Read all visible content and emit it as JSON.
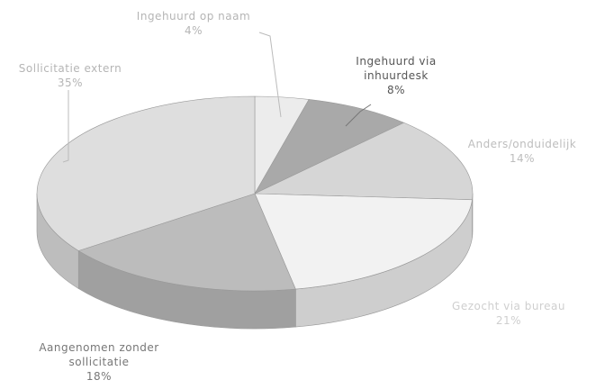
{
  "chart_data": {
    "type": "pie",
    "categories": [
      "Ingehuurd op naam",
      "Ingehuurd via inhuurdesk",
      "Anders/onduidelijk",
      "Gezocht via bureau",
      "Aangenomen zonder sollicitatie",
      "Sollicitatie extern"
    ],
    "values": [
      4,
      8,
      14,
      21,
      18,
      35
    ],
    "value_labels": [
      "4%",
      "8%",
      "14%",
      "21%",
      "18%",
      "35%"
    ],
    "colors": [
      "#ececec",
      "#a9a9a9",
      "#d6d6d6",
      "#f2f2f2",
      "#bcbcbc",
      "#dedede"
    ]
  }
}
